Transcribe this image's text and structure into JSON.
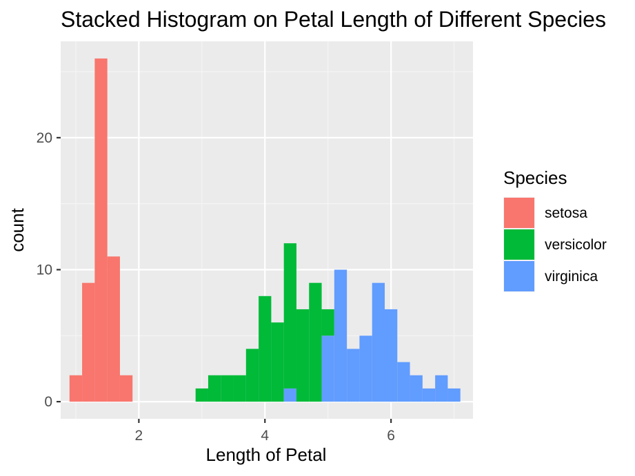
{
  "chart_data": {
    "type": "bar",
    "title": "Stacked Histogram on Petal Length of Different Species",
    "xlabel": "Length of Petal",
    "ylabel": "count",
    "stacked": true,
    "bin_width": 0.2,
    "xlim": [
      0.76,
      7.3
    ],
    "ylim": [
      -1.3,
      27.3
    ],
    "x_ticks": [
      2,
      4,
      6
    ],
    "y_ticks": [
      0,
      10,
      20
    ],
    "grid": true,
    "legend_position": "right",
    "legend_title": "Species",
    "bin_starts": [
      0.9,
      1.1,
      1.3,
      1.5,
      1.7,
      1.9,
      2.1,
      2.3,
      2.5,
      2.7,
      2.9,
      3.1,
      3.3,
      3.5,
      3.7,
      3.9,
      4.1,
      4.3,
      4.5,
      4.7,
      4.9,
      5.1,
      5.3,
      5.5,
      5.7,
      5.9,
      6.1,
      6.3,
      6.5,
      6.7,
      6.9
    ],
    "series": [
      {
        "name": "setosa",
        "color": "#F8766D",
        "values": [
          2,
          9,
          26,
          11,
          2,
          0,
          0,
          0,
          0,
          0,
          0,
          0,
          0,
          0,
          0,
          0,
          0,
          0,
          0,
          0,
          0,
          0,
          0,
          0,
          0,
          0,
          0,
          0,
          0,
          0,
          0
        ]
      },
      {
        "name": "versicolor",
        "color": "#00BA38",
        "values": [
          0,
          0,
          0,
          0,
          0,
          0,
          0,
          0,
          0,
          0,
          1,
          2,
          2,
          2,
          4,
          8,
          6,
          11,
          7,
          9,
          2,
          0,
          0,
          0,
          0,
          0,
          0,
          0,
          0,
          0,
          0
        ]
      },
      {
        "name": "virginica",
        "color": "#619CFF",
        "values": [
          0,
          0,
          0,
          0,
          0,
          0,
          0,
          0,
          0,
          0,
          0,
          0,
          0,
          0,
          0,
          0,
          0,
          1,
          0,
          0,
          5,
          10,
          4,
          5,
          9,
          7,
          3,
          2,
          1,
          2,
          1
        ]
      }
    ]
  },
  "theme": {
    "panel_background": "#EBEBEB",
    "grid_major": "#FFFFFF",
    "grid_minor": "#F5F5F5",
    "tick_color": "#333333",
    "tick_label_color": "#4D4D4D"
  }
}
